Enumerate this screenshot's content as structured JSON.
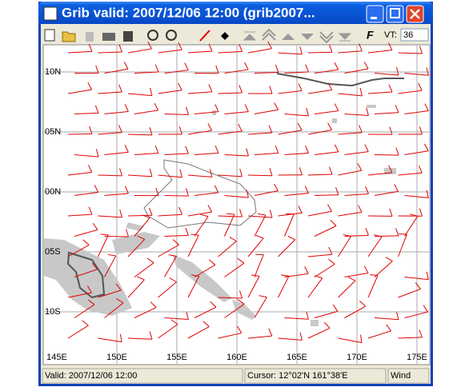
{
  "window": {
    "title": "Grib valid: 2007/12/06 12:00 (grib2007...",
    "toolbar": {
      "vt_label": "VT:",
      "vt_value": "36"
    },
    "map": {
      "lat_labels": [
        "10N",
        "05N",
        "00N",
        "05S",
        "10S"
      ],
      "lon_labels": [
        "145E",
        "150E",
        "155E",
        "160E",
        "165E",
        "170E",
        "175E"
      ]
    },
    "status": {
      "valid": "Valid: 2007/12/06 12:00",
      "cursor": "Cursor: 12°02'N  161°38'E",
      "layer": "Wind"
    }
  }
}
